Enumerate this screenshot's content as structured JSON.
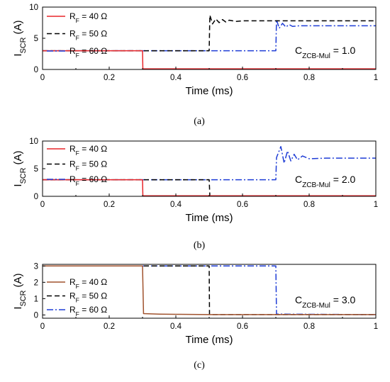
{
  "chart_data": [
    {
      "type": "line",
      "panel_caption": "(a)",
      "annotation": "C_ZCB-Mul = 1.0",
      "xlabel": "Time (ms)",
      "ylabel": "I_SCR (A)",
      "xlim": [
        0,
        1
      ],
      "ylim": [
        0,
        10
      ],
      "xticks": [
        "0",
        "0.2",
        "0.4",
        "0.6",
        "0.8",
        "1"
      ],
      "yticks": [
        "0",
        "5",
        "10"
      ],
      "legend_position": "top-left",
      "series": [
        {
          "name": "R_F = 40 Ω",
          "color": "#e8262a",
          "dash": "solid",
          "x": [
            0,
            0.3,
            0.301,
            1.0
          ],
          "y": [
            3,
            3,
            0.1,
            0.1
          ]
        },
        {
          "name": "R_F = 50 Ω",
          "color": "#000000",
          "dash": "dashed",
          "x": [
            0,
            0.5,
            0.502,
            0.51,
            0.52,
            0.53,
            0.54,
            0.55,
            0.56,
            0.58,
            0.6,
            1.0
          ],
          "y": [
            3,
            3,
            8.7,
            7.3,
            8.1,
            7.5,
            8.0,
            7.6,
            7.9,
            7.7,
            7.8,
            7.8
          ]
        },
        {
          "name": "R_F = 60 Ω",
          "color": "#1f3dd6",
          "dash": "dashdot",
          "x": [
            0,
            0.7,
            0.702,
            0.71,
            0.72,
            0.73,
            0.74,
            0.75,
            0.77,
            0.8,
            1.0
          ],
          "y": [
            3,
            3,
            8.0,
            6.6,
            7.4,
            6.8,
            7.2,
            6.9,
            7.0,
            7.0,
            7.0
          ]
        }
      ]
    },
    {
      "type": "line",
      "panel_caption": "(b)",
      "annotation": "C_ZCB-Mul = 2.0",
      "xlabel": "Time (ms)",
      "ylabel": "I_SCR (A)",
      "xlim": [
        0,
        1
      ],
      "ylim": [
        0,
        10
      ],
      "xticks": [
        "0",
        "0.2",
        "0.4",
        "0.6",
        "0.8",
        "1"
      ],
      "yticks": [
        "0",
        "5",
        "10"
      ],
      "legend_position": "top-left",
      "series": [
        {
          "name": "R_F = 40 Ω",
          "color": "#e8262a",
          "dash": "solid",
          "x": [
            0,
            0.3,
            0.301,
            1.0
          ],
          "y": [
            3,
            3,
            0.1,
            0.1
          ]
        },
        {
          "name": "R_F = 50 Ω",
          "color": "#000000",
          "dash": "dashed",
          "x": [
            0,
            0.5,
            0.502,
            1.0
          ],
          "y": [
            3,
            3,
            0.1,
            0.1
          ]
        },
        {
          "name": "R_F = 60 Ω",
          "color": "#1f3dd6",
          "dash": "dashdot",
          "x": [
            0,
            0.7,
            0.702,
            0.715,
            0.725,
            0.735,
            0.745,
            0.755,
            0.765,
            0.78,
            0.8,
            0.85,
            1.0
          ],
          "y": [
            3,
            3,
            7.0,
            9.0,
            6.0,
            8.2,
            6.4,
            7.6,
            6.6,
            7.3,
            6.8,
            6.9,
            6.9
          ]
        }
      ]
    },
    {
      "type": "line",
      "panel_caption": "(c)",
      "annotation": "C_ZCB-Mul = 3.0",
      "xlabel": "Time (ms)",
      "ylabel": "I_SCR (A)",
      "xlim": [
        0,
        1
      ],
      "ylim": [
        -0.2,
        3.1
      ],
      "xticks": [
        "0",
        "0.2",
        "0.4",
        "0.6",
        "0.8",
        "1"
      ],
      "yticks": [
        "0",
        "1",
        "2",
        "3"
      ],
      "legend_position": "center-left",
      "series": [
        {
          "name": "R_F = 40 Ω",
          "color": "#a0522d",
          "dash": "solid",
          "x": [
            0,
            0.3,
            0.303,
            0.35,
            0.4,
            0.5,
            1.0
          ],
          "y": [
            3,
            3,
            0.08,
            0.05,
            0.04,
            0.02,
            0.02
          ]
        },
        {
          "name": "R_F = 50 Ω",
          "color": "#000000",
          "dash": "dashed",
          "x": [
            0,
            0.5,
            0.501,
            1.0
          ],
          "y": [
            3,
            3,
            0.02,
            0.02
          ]
        },
        {
          "name": "R_F = 60 Ω",
          "color": "#1f3dd6",
          "dash": "dashdot",
          "x": [
            0,
            0.7,
            0.702,
            1.0
          ],
          "y": [
            3,
            3,
            0.05,
            0.02
          ]
        }
      ]
    }
  ]
}
